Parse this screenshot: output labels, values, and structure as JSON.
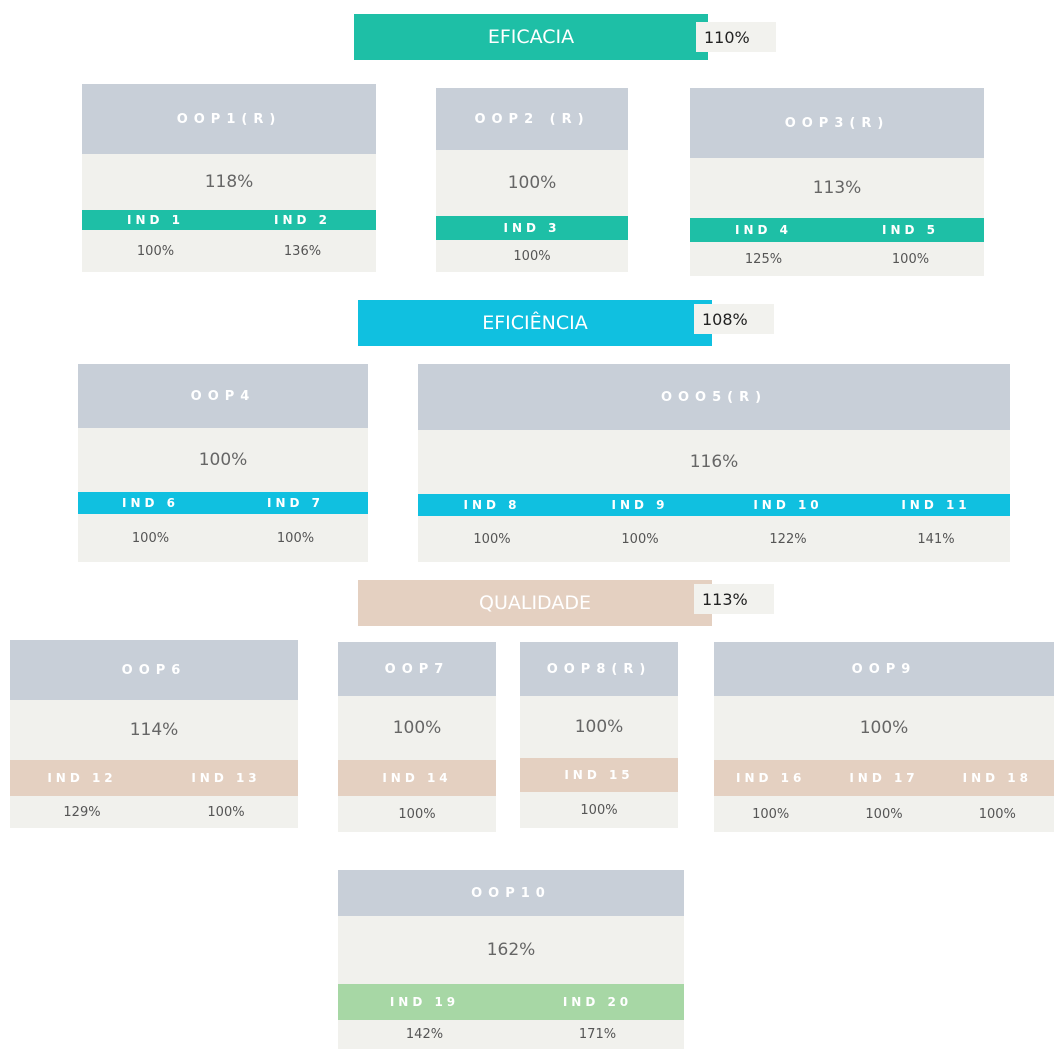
{
  "sections": [
    {
      "label": "EFICACIA",
      "value": "110%",
      "cards": [
        {
          "title": "OOP1(R)",
          "value": "118%",
          "indicators": [
            {
              "name": "IND 1",
              "value": "100%"
            },
            {
              "name": "IND 2",
              "value": "136%"
            }
          ]
        },
        {
          "title": "OOP2 (R)",
          "value": "100%",
          "indicators": [
            {
              "name": "IND 3",
              "value": "100%"
            }
          ]
        },
        {
          "title": "OOP3(R)",
          "value": "113%",
          "indicators": [
            {
              "name": "IND 4",
              "value": "125%"
            },
            {
              "name": "IND 5",
              "value": "100%"
            }
          ]
        }
      ]
    },
    {
      "label": "EFICIÊNCIA",
      "value": "108%",
      "cards": [
        {
          "title": "OOP4",
          "value": "100%",
          "indicators": [
            {
              "name": "IND 6",
              "value": "100%"
            },
            {
              "name": "IND 7",
              "value": "100%"
            }
          ]
        },
        {
          "title": "OOO5(R)",
          "value": "116%",
          "indicators": [
            {
              "name": "IND 8",
              "value": "100%"
            },
            {
              "name": "IND 9",
              "value": "100%"
            },
            {
              "name": "IND 10",
              "value": "122%"
            },
            {
              "name": "IND 11",
              "value": "141%"
            }
          ]
        }
      ]
    },
    {
      "label": "QUALIDADE",
      "value": "113%",
      "cards": [
        {
          "title": "OOP6",
          "value": "114%",
          "indicators": [
            {
              "name": "IND 12",
              "value": "129%"
            },
            {
              "name": "IND 13",
              "value": "100%"
            }
          ]
        },
        {
          "title": "OOP7",
          "value": "100%",
          "indicators": [
            {
              "name": "IND 14",
              "value": "100%"
            }
          ]
        },
        {
          "title": "OOP8(R)",
          "value": "100%",
          "indicators": [
            {
              "name": "IND 15",
              "value": "100%"
            }
          ]
        },
        {
          "title": "OOP9",
          "value": "100%",
          "indicators": [
            {
              "name": "IND 16",
              "value": "100%"
            },
            {
              "name": "IND 17",
              "value": "100%"
            },
            {
              "name": "IND 18",
              "value": "100%"
            }
          ]
        }
      ]
    }
  ],
  "standalone_card": {
    "title": "OOP10",
    "value": "162%",
    "indicators": [
      {
        "name": "IND 19",
        "value": "142%"
      },
      {
        "name": "IND 20",
        "value": "171%"
      }
    ]
  }
}
